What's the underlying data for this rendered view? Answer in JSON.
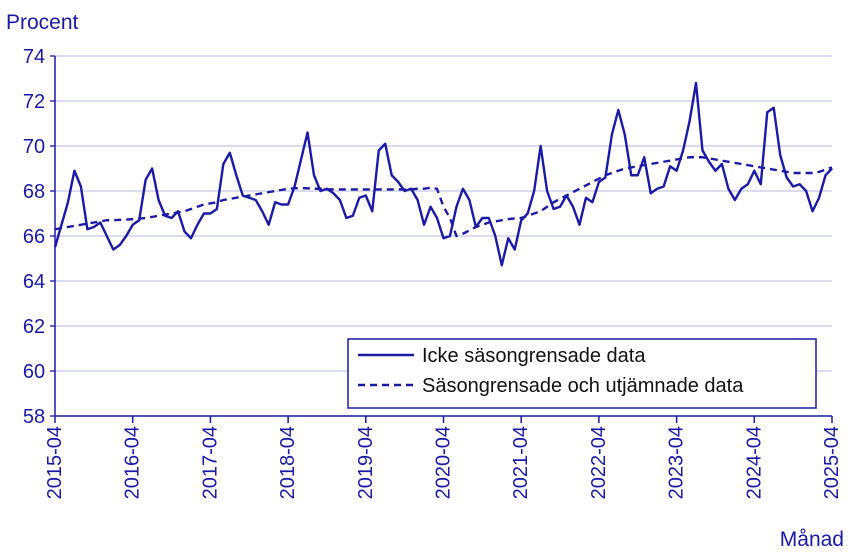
{
  "chart_data": {
    "type": "line",
    "title": "",
    "ylabel": "Procent",
    "xlabel": "Månad",
    "ylim": [
      58,
      74
    ],
    "yticks": [
      58,
      60,
      62,
      64,
      66,
      68,
      70,
      72,
      74
    ],
    "xlim": [
      0,
      120
    ],
    "xticks": [
      {
        "label": "2015-04",
        "index": 0
      },
      {
        "label": "2016-04",
        "index": 12
      },
      {
        "label": "2017-04",
        "index": 24
      },
      {
        "label": "2018-04",
        "index": 36
      },
      {
        "label": "2019-04",
        "index": 48
      },
      {
        "label": "2020-04",
        "index": 60
      },
      {
        "label": "2021-04",
        "index": 72
      },
      {
        "label": "2022-04",
        "index": 84
      },
      {
        "label": "2023-04",
        "index": 96
      },
      {
        "label": "2024-04",
        "index": 108
      },
      {
        "label": "2025-04",
        "index": 120
      }
    ],
    "grid": true,
    "legend_position": "bottom-right",
    "colors": {
      "line": "#1a1aa6",
      "grid": "#c8c8e6",
      "axis": "#1a1aa6",
      "text": "#1a1aa6"
    },
    "series": [
      {
        "name": "Icke säsongrensade data",
        "style": "solid",
        "values": [
          65.5,
          66.5,
          67.5,
          68.9,
          68.2,
          66.3,
          66.4,
          66.6,
          66.0,
          65.4,
          65.6,
          66.0,
          66.5,
          66.7,
          68.5,
          69.0,
          67.6,
          66.9,
          66.8,
          67.1,
          66.2,
          65.9,
          66.5,
          67.0,
          67.0,
          67.2,
          69.2,
          69.7,
          68.7,
          67.8,
          67.7,
          67.6,
          67.1,
          66.5,
          67.5,
          67.4,
          67.4,
          68.2,
          69.4,
          70.6,
          68.7,
          68.0,
          68.1,
          67.9,
          67.6,
          66.8,
          66.9,
          67.7,
          67.8,
          67.1,
          69.8,
          70.1,
          68.7,
          68.4,
          68.0,
          68.1,
          67.6,
          66.5,
          67.3,
          66.8,
          65.9,
          66.0,
          67.3,
          68.1,
          67.6,
          66.4,
          66.8,
          66.8,
          66.0,
          64.7,
          65.9,
          65.4,
          66.7,
          67.0,
          68.0,
          70.0,
          68.0,
          67.2,
          67.3,
          67.8,
          67.3,
          66.5,
          67.7,
          67.5,
          68.4,
          68.6,
          70.5,
          71.6,
          70.5,
          68.7,
          68.7,
          69.5,
          67.9,
          68.1,
          68.2,
          69.1,
          68.9,
          69.8,
          71.1,
          72.8,
          69.8,
          69.3,
          68.9,
          69.2,
          68.1,
          67.6,
          68.1,
          68.3,
          68.9,
          68.3,
          71.5,
          71.7,
          69.6,
          68.6,
          68.2,
          68.3,
          68.0,
          67.1,
          67.7,
          68.7,
          69.0
        ]
      },
      {
        "name": "Säsongrensade och utjämnade data",
        "style": "dashed",
        "values": [
          66.3,
          66.35,
          66.4,
          66.45,
          66.5,
          66.55,
          66.6,
          66.65,
          66.7,
          66.7,
          66.72,
          66.73,
          66.75,
          66.77,
          66.8,
          66.85,
          66.9,
          66.95,
          67.0,
          67.05,
          67.1,
          67.2,
          67.3,
          67.4,
          67.45,
          67.5,
          67.6,
          67.65,
          67.7,
          67.75,
          67.8,
          67.85,
          67.9,
          67.95,
          68.0,
          68.05,
          68.1,
          68.12,
          68.13,
          68.12,
          68.1,
          68.1,
          68.08,
          68.07,
          68.07,
          68.07,
          68.07,
          68.07,
          68.07,
          68.07,
          68.07,
          68.07,
          68.07,
          68.07,
          68.07,
          68.07,
          68.1,
          68.1,
          68.15,
          68.1,
          67.3,
          66.8,
          66.0,
          66.1,
          66.25,
          66.4,
          66.5,
          66.6,
          66.65,
          66.7,
          66.75,
          66.78,
          66.8,
          66.9,
          67.0,
          67.1,
          67.3,
          67.5,
          67.65,
          67.8,
          67.95,
          68.1,
          68.25,
          68.4,
          68.55,
          68.7,
          68.8,
          68.9,
          69.0,
          69.05,
          69.1,
          69.15,
          69.2,
          69.25,
          69.3,
          69.35,
          69.4,
          69.45,
          69.5,
          69.5,
          69.5,
          69.45,
          69.4,
          69.35,
          69.3,
          69.25,
          69.2,
          69.15,
          69.1,
          69.05,
          69.0,
          68.95,
          68.9,
          68.85,
          68.8,
          68.8,
          68.8,
          68.8,
          68.85,
          68.95,
          69.05
        ]
      }
    ]
  }
}
